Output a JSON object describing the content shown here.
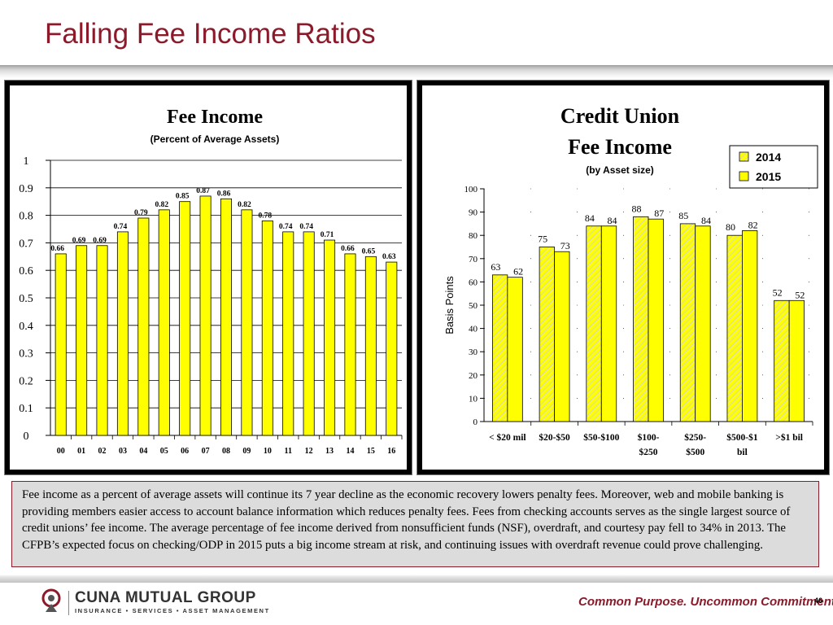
{
  "slide": {
    "title": "Falling Fee Income Ratios",
    "caption": "Fee income as a percent of average assets will continue its 7 year decline as the economic recovery lowers penalty fees.  Moreover, web and mobile banking is providing members easier access to account balance information which reduces penalty fees. Fees from checking accounts serves as the single largest source of credit unions’ fee income.  The average percentage of fee income derived from nonsufficient funds (NSF), overdraft, and courtesy pay fell to 34% in 2013. The CFPB’s expected focus on checking/ODP in 2015 puts a big income stream at risk, and continuing issues with overdraft revenue could prove challenging.",
    "footer": {
      "logo_name": "CUNA MUTUAL GROUP",
      "logo_tagline": "INSURANCE • SERVICES • ASSET MANAGEMENT",
      "slogan": "Common Purpose. Uncommon Commitment.",
      "page_number": "46"
    },
    "colors": {
      "accent": "#8b1a2b",
      "bar_fill": "#ffff00",
      "bar_stroke": "#000000",
      "caption_bg": "#dcdcdc"
    }
  },
  "chart_data": [
    {
      "type": "bar",
      "title": "Fee Income",
      "subtitle": "(Percent of Average Assets)",
      "categories": [
        "00",
        "01",
        "02",
        "03",
        "04",
        "05",
        "06",
        "07",
        "08",
        "09",
        "10",
        "11",
        "12",
        "13",
        "14",
        "15",
        "16"
      ],
      "values": [
        0.66,
        0.69,
        0.69,
        0.74,
        0.79,
        0.82,
        0.85,
        0.87,
        0.86,
        0.82,
        0.78,
        0.74,
        0.74,
        0.71,
        0.66,
        0.65,
        0.63
      ],
      "data_labels": [
        "0.66",
        "0.69",
        "0.69",
        "0.74",
        "0.79",
        "0.82",
        "0.85",
        "0.87",
        "0.86",
        "0.82",
        "0.78",
        "0.74",
        "0.74",
        "0.71",
        "0.66",
        "0.65",
        "0.63"
      ],
      "ylim": [
        0,
        1
      ],
      "yticks": [
        "0",
        "0.1",
        "0.2",
        "0.3",
        "0.4",
        "0.5",
        "0.6",
        "0.7",
        "0.8",
        "0.9",
        "1"
      ],
      "grid": true,
      "legend": "none"
    },
    {
      "type": "bar",
      "title_lines": [
        "Credit Union",
        "Fee Income"
      ],
      "subtitle": "(by Asset size)",
      "ylabel": "Basis Points",
      "categories": [
        [
          "< $20 mil"
        ],
        [
          "$20-$50"
        ],
        [
          "$50-$100"
        ],
        [
          "$100-",
          "$250"
        ],
        [
          "$250-",
          "$500"
        ],
        [
          "$500-$1",
          "bil"
        ],
        [
          ">$1 bil"
        ]
      ],
      "series": [
        {
          "name": "2014",
          "values": [
            63,
            75,
            84,
            88,
            85,
            80,
            52
          ],
          "pattern": "diagonal-hatch"
        },
        {
          "name": "2015",
          "values": [
            62,
            73,
            84,
            87,
            84,
            82,
            52
          ],
          "pattern": "solid"
        }
      ],
      "ylim": [
        0,
        100
      ],
      "yticks": [
        "0",
        "10",
        "20",
        "30",
        "40",
        "50",
        "60",
        "70",
        "80",
        "90",
        "100"
      ],
      "grid": true,
      "legend": "top-right"
    }
  ]
}
